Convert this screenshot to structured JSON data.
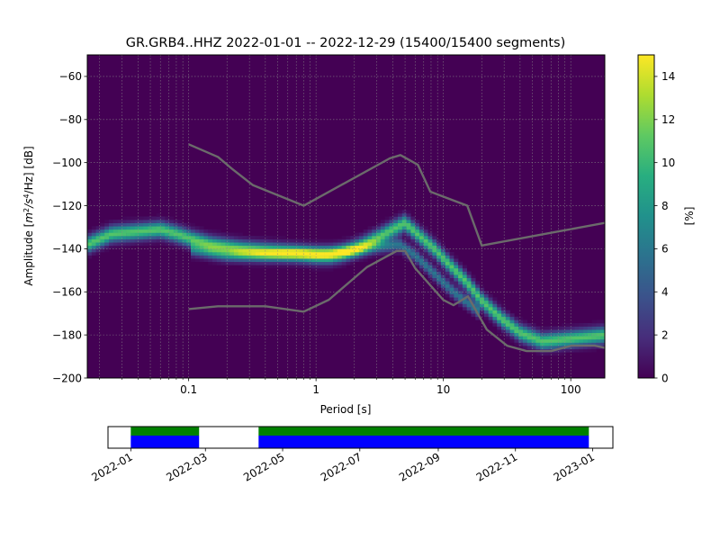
{
  "chart_data": [
    {
      "type": "heatmap",
      "title": "GR.GRB4..HHZ   2022-01-01 -- 2022-12-29  (15400/15400 segments)",
      "xlabel": "Period [s]",
      "ylabel_parts": {
        "prefix": "Amplitude [",
        "m": "m",
        "exp2": "2",
        "mid": "/s",
        "exp4": "4",
        "suffix": "/Hz] [dB]"
      },
      "x_scale": "log",
      "xlim": [
        0.016,
        185
      ],
      "ylim": [
        -200,
        -50
      ],
      "x_ticks": [
        {
          "value": 0.1,
          "label": "0.1"
        },
        {
          "value": 1,
          "label": "1"
        },
        {
          "value": 10,
          "label": "10"
        },
        {
          "value": 100,
          "label": "100"
        }
      ],
      "y_ticks": [
        {
          "value": -60,
          "label": "−60"
        },
        {
          "value": -80,
          "label": "−80"
        },
        {
          "value": -100,
          "label": "−100"
        },
        {
          "value": -120,
          "label": "−120"
        },
        {
          "value": -140,
          "label": "−140"
        },
        {
          "value": -160,
          "label": "−160"
        },
        {
          "value": -180,
          "label": "−180"
        },
        {
          "value": -200,
          "label": "−200"
        }
      ],
      "grid": true,
      "colormap": "viridis",
      "background_color": "#440154",
      "colorbar": {
        "label": "[%]",
        "range": [
          0,
          15
        ],
        "ticks": [
          {
            "value": 0,
            "label": "0"
          },
          {
            "value": 2,
            "label": "2"
          },
          {
            "value": 4,
            "label": "4"
          },
          {
            "value": 6,
            "label": "6"
          },
          {
            "value": 8,
            "label": "8"
          },
          {
            "value": 10,
            "label": "10"
          },
          {
            "value": 12,
            "label": "12"
          },
          {
            "value": 14,
            "label": "14"
          }
        ]
      },
      "ridges": [
        {
          "sigma": 2.5,
          "peak": 11,
          "points": [
            [
              0.016,
              -138
            ],
            [
              0.025,
              -133
            ],
            [
              0.04,
              -132
            ],
            [
              0.06,
              -131
            ],
            [
              0.08,
              -133
            ],
            [
              0.1,
              -135
            ],
            [
              0.15,
              -138
            ],
            [
              0.25,
              -140
            ],
            [
              0.4,
              -141
            ],
            [
              0.7,
              -142
            ],
            [
              1.0,
              -143
            ],
            [
              1.3,
              -143
            ],
            [
              1.6,
              -142
            ],
            [
              2.2,
              -139
            ],
            [
              3.0,
              -135
            ],
            [
              4.0,
              -131
            ],
            [
              5.0,
              -128
            ],
            [
              6.5,
              -134
            ],
            [
              8.5,
              -140
            ],
            [
              11,
              -147
            ],
            [
              15,
              -155
            ],
            [
              20,
              -164
            ],
            [
              28,
              -172
            ],
            [
              40,
              -179
            ],
            [
              60,
              -183
            ],
            [
              90,
              -182
            ],
            [
              130,
              -181
            ],
            [
              185,
              -180
            ]
          ]
        },
        {
          "sigma": 2.0,
          "peak": 6,
          "points": [
            [
              0.1,
              -140
            ],
            [
              0.2,
              -143
            ],
            [
              0.4,
              -143
            ],
            [
              0.8,
              -142
            ],
            [
              1.2,
              -142
            ],
            [
              2.0,
              -141
            ],
            [
              3.0,
              -139
            ],
            [
              4.5,
              -138
            ],
            [
              6.0,
              -143
            ],
            [
              8.0,
              -150
            ],
            [
              12,
              -160
            ],
            [
              20,
              -170
            ]
          ]
        }
      ],
      "noise_models": [
        {
          "name": "high",
          "color": "#6b6b6b",
          "points": [
            [
              0.1,
              -91.5
            ],
            [
              0.17,
              -97.4
            ],
            [
              0.22,
              -103
            ],
            [
              0.32,
              -110.5
            ],
            [
              0.8,
              -120
            ],
            [
              3.8,
              -98
            ],
            [
              4.6,
              -96.5
            ],
            [
              6.3,
              -101
            ],
            [
              7.9,
              -113.5
            ],
            [
              15.4,
              -120
            ],
            [
              20,
              -138.5
            ],
            [
              185,
              -128
            ]
          ]
        },
        {
          "name": "low",
          "color": "#6b6b6b",
          "points": [
            [
              0.1,
              -168
            ],
            [
              0.17,
              -166.7
            ],
            [
              0.4,
              -166.7
            ],
            [
              0.8,
              -169.2
            ],
            [
              1.26,
              -163.7
            ],
            [
              2.5,
              -148.6
            ],
            [
              4.3,
              -141
            ],
            [
              5.0,
              -141
            ],
            [
              6.0,
              -149
            ],
            [
              10,
              -163.8
            ],
            [
              12,
              -166.2
            ],
            [
              15.6,
              -162.1
            ],
            [
              21.9,
              -177.5
            ],
            [
              31.6,
              -185
            ],
            [
              45,
              -187.5
            ],
            [
              70,
              -187.5
            ],
            [
              101,
              -185
            ],
            [
              154,
              -185
            ],
            [
              185,
              -186
            ]
          ]
        }
      ]
    },
    {
      "type": "timeline",
      "xlim": [
        "2021-12-14",
        "2023-01-17"
      ],
      "tick_labels": [
        {
          "date": "2022-01-01",
          "label": "2022-01"
        },
        {
          "date": "2022-03-01",
          "label": "2022-03"
        },
        {
          "date": "2022-05-01",
          "label": "2022-05"
        },
        {
          "date": "2022-07-01",
          "label": "2022-07"
        },
        {
          "date": "2022-09-01",
          "label": "2022-09"
        },
        {
          "date": "2022-11-01",
          "label": "2022-11"
        },
        {
          "date": "2023-01-01",
          "label": "2023-01"
        }
      ],
      "coverage_segments": [
        {
          "start": "2022-01-01",
          "end": "2022-02-24"
        },
        {
          "start": "2022-04-12",
          "end": "2022-12-29"
        }
      ],
      "colors": {
        "upper": "#008000",
        "lower": "#0000ff"
      }
    }
  ]
}
